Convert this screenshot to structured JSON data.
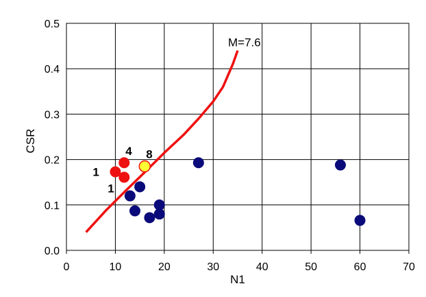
{
  "chart_data": {
    "type": "scatter",
    "title": "",
    "xlabel": "N1",
    "ylabel": "CSR",
    "xlim": [
      0,
      70
    ],
    "ylim": [
      0,
      0.5
    ],
    "x_ticks": [
      "0",
      "10",
      "20",
      "30",
      "40",
      "50",
      "60",
      "70"
    ],
    "y_ticks": [
      "0.0",
      "0.1",
      "0.2",
      "0.3",
      "0.4",
      "0.5"
    ],
    "grid": true,
    "legend": "none",
    "series": [
      {
        "kind": "line",
        "color": "#ee1111",
        "label": "M=7.6",
        "points": [
          [
            4,
            0.04
          ],
          [
            8,
            0.087
          ],
          [
            12,
            0.13
          ],
          [
            16,
            0.172
          ],
          [
            20,
            0.215
          ],
          [
            24,
            0.255
          ],
          [
            27,
            0.29
          ],
          [
            30,
            0.328
          ],
          [
            32,
            0.36
          ],
          [
            34,
            0.41
          ],
          [
            35,
            0.44
          ]
        ]
      },
      {
        "kind": "points",
        "color": "#ee1111",
        "points": [
          [
            10,
            0.173
          ],
          [
            11.8,
            0.193
          ],
          [
            11.8,
            0.161
          ]
        ],
        "labels": [
          "1",
          "4",
          "1"
        ]
      },
      {
        "kind": "points",
        "color": "#ffff33",
        "points": [
          [
            16,
            0.185
          ]
        ],
        "labels": [
          "8"
        ]
      },
      {
        "kind": "points",
        "color": "#0a0a7a",
        "points": [
          [
            13,
            0.12
          ],
          [
            15,
            0.14
          ],
          [
            14,
            0.087
          ],
          [
            17,
            0.072
          ],
          [
            19,
            0.1
          ],
          [
            19,
            0.08
          ],
          [
            27,
            0.193
          ],
          [
            56,
            0.188
          ],
          [
            60,
            0.066
          ]
        ]
      }
    ]
  }
}
